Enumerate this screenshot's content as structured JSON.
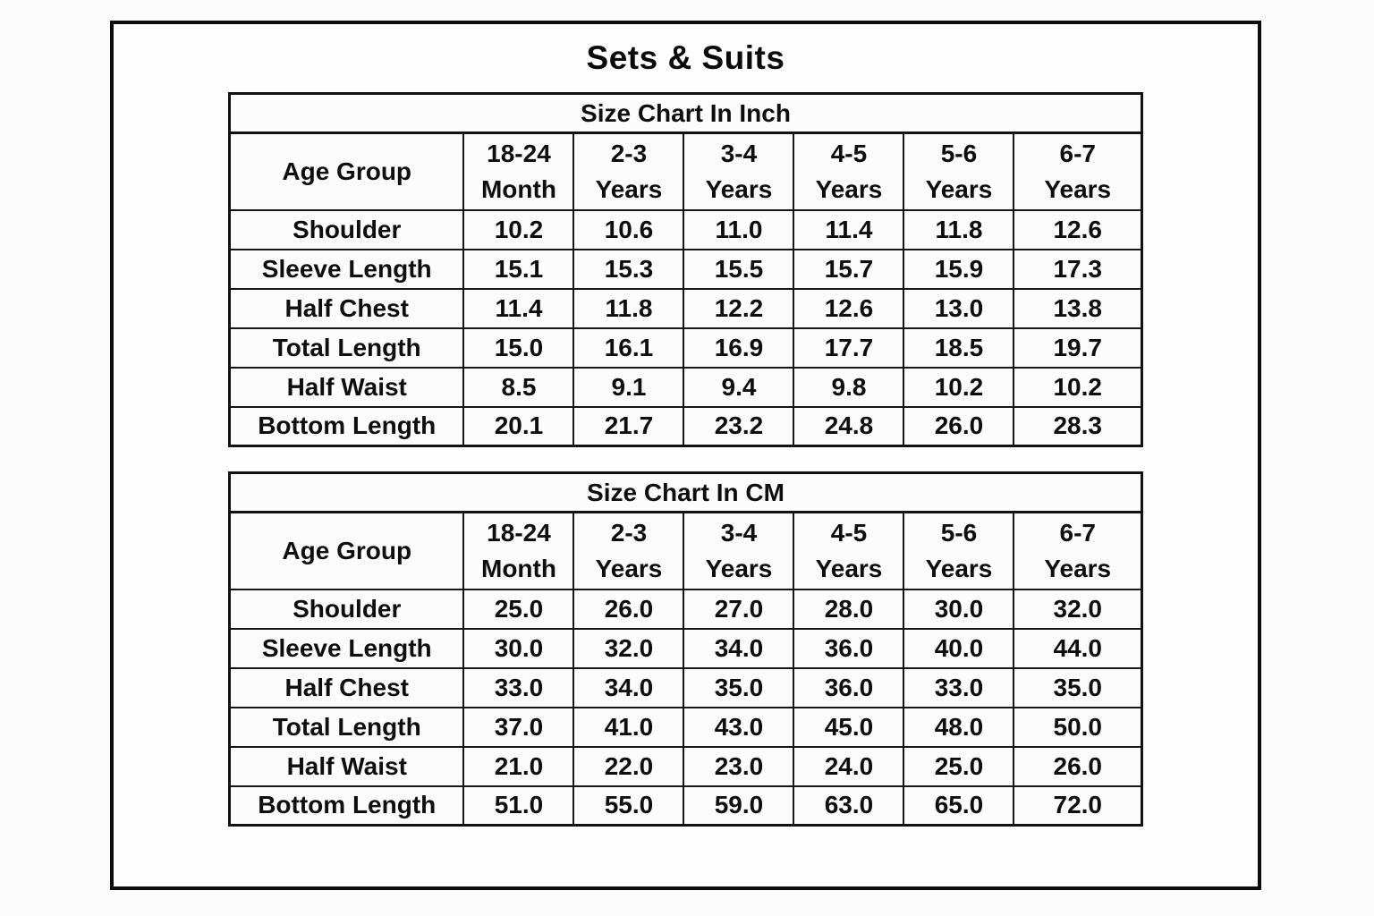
{
  "page": {
    "title": "Sets & Suits"
  },
  "colors": {
    "text": "#0e0e0e",
    "border": "#111111",
    "background": "#fbfbfb",
    "cell_background": "#fcfcfc"
  },
  "tables": [
    {
      "title": "Size Chart In Inch",
      "corner_label": "Age Group",
      "columns": [
        {
          "range": "18-24",
          "unit": "Month"
        },
        {
          "range": "2-3",
          "unit": "Years"
        },
        {
          "range": "3-4",
          "unit": "Years"
        },
        {
          "range": "4-5",
          "unit": "Years"
        },
        {
          "range": "5-6",
          "unit": "Years"
        },
        {
          "range": "6-7",
          "unit": "Years"
        }
      ],
      "rows": [
        {
          "label": "Shoulder",
          "values": [
            "10.2",
            "10.6",
            "11.0",
            "11.4",
            "11.8",
            "12.6"
          ]
        },
        {
          "label": "Sleeve Length",
          "values": [
            "15.1",
            "15.3",
            "15.5",
            "15.7",
            "15.9",
            "17.3"
          ]
        },
        {
          "label": "Half Chest",
          "values": [
            "11.4",
            "11.8",
            "12.2",
            "12.6",
            "13.0",
            "13.8"
          ]
        },
        {
          "label": "Total Length",
          "values": [
            "15.0",
            "16.1",
            "16.9",
            "17.7",
            "18.5",
            "19.7"
          ]
        },
        {
          "label": "Half Waist",
          "values": [
            "8.5",
            "9.1",
            "9.4",
            "9.8",
            "10.2",
            "10.2"
          ]
        },
        {
          "label": "Bottom Length",
          "values": [
            "20.1",
            "21.7",
            "23.2",
            "24.8",
            "26.0",
            "28.3"
          ]
        }
      ]
    },
    {
      "title": "Size Chart In CM",
      "corner_label": "Age Group",
      "columns": [
        {
          "range": "18-24",
          "unit": "Month"
        },
        {
          "range": "2-3",
          "unit": "Years"
        },
        {
          "range": "3-4",
          "unit": "Years"
        },
        {
          "range": "4-5",
          "unit": "Years"
        },
        {
          "range": "5-6",
          "unit": "Years"
        },
        {
          "range": "6-7",
          "unit": "Years"
        }
      ],
      "rows": [
        {
          "label": "Shoulder",
          "values": [
            "25.0",
            "26.0",
            "27.0",
            "28.0",
            "30.0",
            "32.0"
          ]
        },
        {
          "label": "Sleeve Length",
          "values": [
            "30.0",
            "32.0",
            "34.0",
            "36.0",
            "40.0",
            "44.0"
          ]
        },
        {
          "label": "Half Chest",
          "values": [
            "33.0",
            "34.0",
            "35.0",
            "36.0",
            "33.0",
            "35.0"
          ]
        },
        {
          "label": "Total Length",
          "values": [
            "37.0",
            "41.0",
            "43.0",
            "45.0",
            "48.0",
            "50.0"
          ]
        },
        {
          "label": "Half Waist",
          "values": [
            "21.0",
            "22.0",
            "23.0",
            "24.0",
            "25.0",
            "26.0"
          ]
        },
        {
          "label": "Bottom Length",
          "values": [
            "51.0",
            "55.0",
            "59.0",
            "63.0",
            "65.0",
            "72.0"
          ]
        }
      ]
    }
  ],
  "chart_data": [
    {
      "type": "table",
      "title": "Size Chart In Inch",
      "unit": "inch",
      "columns": [
        "Age Group",
        "18-24 Month",
        "2-3 Years",
        "3-4 Years",
        "4-5 Years",
        "5-6 Years",
        "6-7 Years"
      ],
      "rows": [
        [
          "Shoulder",
          10.2,
          10.6,
          11.0,
          11.4,
          11.8,
          12.6
        ],
        [
          "Sleeve Length",
          15.1,
          15.3,
          15.5,
          15.7,
          15.9,
          17.3
        ],
        [
          "Half Chest",
          11.4,
          11.8,
          12.2,
          12.6,
          13.0,
          13.8
        ],
        [
          "Total Length",
          15.0,
          16.1,
          16.9,
          17.7,
          18.5,
          19.7
        ],
        [
          "Half Waist",
          8.5,
          9.1,
          9.4,
          9.8,
          10.2,
          10.2
        ],
        [
          "Bottom Length",
          20.1,
          21.7,
          23.2,
          24.8,
          26.0,
          28.3
        ]
      ]
    },
    {
      "type": "table",
      "title": "Size Chart In CM",
      "unit": "cm",
      "columns": [
        "Age Group",
        "18-24 Month",
        "2-3 Years",
        "3-4 Years",
        "4-5 Years",
        "5-6 Years",
        "6-7 Years"
      ],
      "rows": [
        [
          "Shoulder",
          25.0,
          26.0,
          27.0,
          28.0,
          30.0,
          32.0
        ],
        [
          "Sleeve Length",
          30.0,
          32.0,
          34.0,
          36.0,
          40.0,
          44.0
        ],
        [
          "Half Chest",
          33.0,
          34.0,
          35.0,
          36.0,
          33.0,
          35.0
        ],
        [
          "Total Length",
          37.0,
          41.0,
          43.0,
          45.0,
          48.0,
          50.0
        ],
        [
          "Half Waist",
          21.0,
          22.0,
          23.0,
          24.0,
          25.0,
          26.0
        ],
        [
          "Bottom Length",
          51.0,
          55.0,
          59.0,
          63.0,
          65.0,
          72.0
        ]
      ]
    }
  ]
}
